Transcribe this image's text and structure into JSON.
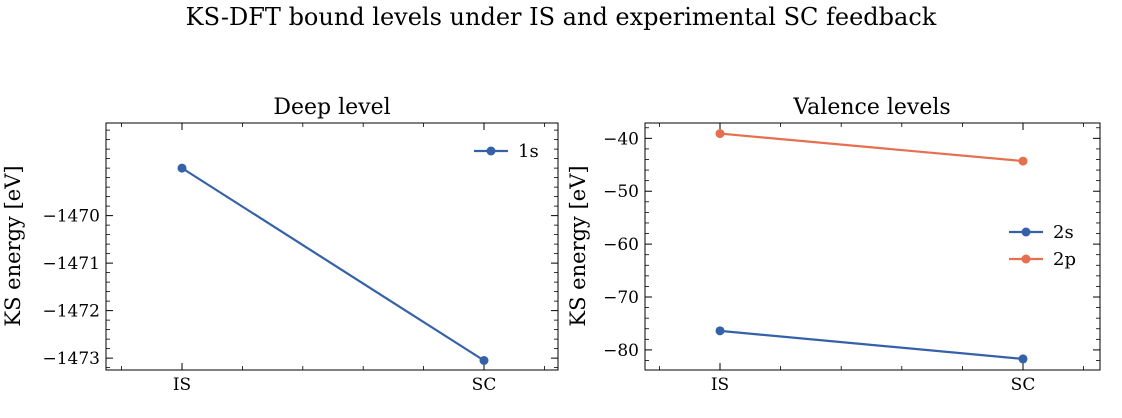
{
  "figure": {
    "suptitle": "KS-DFT bound levels under IS and experimental SC feedback"
  },
  "chart_data": [
    {
      "type": "line",
      "title": "Deep level",
      "xlabel": "",
      "ylabel": "KS energy [eV]",
      "categories": [
        "IS",
        "SC"
      ],
      "ylim": [
        -1473.25,
        -1468.05
      ],
      "yticks": [
        -1470,
        -1471,
        -1472,
        -1473
      ],
      "ytick_labels": [
        "−1470",
        "−1471",
        "−1472",
        "−1473"
      ],
      "legend_placement": "upper right",
      "grid": false,
      "series": [
        {
          "name": "1s",
          "color": "#3461a8",
          "values": [
            -1469.0,
            -1473.05
          ]
        }
      ]
    },
    {
      "type": "line",
      "title": "Valence levels",
      "xlabel": "",
      "ylabel": "KS energy [eV]",
      "categories": [
        "IS",
        "SC"
      ],
      "ylim": [
        -83.8,
        -37.1
      ],
      "yticks": [
        -40,
        -50,
        -60,
        -70,
        -80
      ],
      "ytick_labels": [
        "−40",
        "−50",
        "−60",
        "−70",
        "−80"
      ],
      "legend_placement": "center right",
      "grid": false,
      "series": [
        {
          "name": "2s",
          "color": "#3461a8",
          "values": [
            -76.4,
            -81.7
          ]
        },
        {
          "name": "2p",
          "color": "#e5704f",
          "values": [
            -39.1,
            -44.3
          ]
        }
      ]
    }
  ]
}
